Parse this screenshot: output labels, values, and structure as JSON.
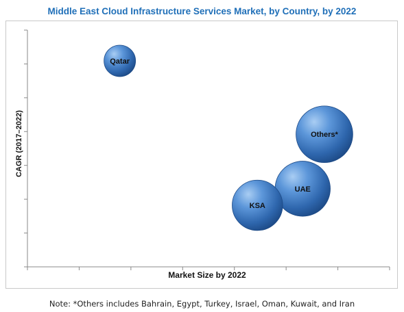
{
  "chart_data": {
    "type": "bubble",
    "title": "Middle East Cloud Infrastructure Services Market, by Country, by 2022",
    "xlabel": "Market Size by 2022",
    "ylabel": "CAGR (2017–2022)",
    "x_ticks_labeled": false,
    "y_ticks_labeled": false,
    "grid": false,
    "legend": "none",
    "xlim": [
      0,
      10
    ],
    "ylim": [
      0,
      10
    ],
    "points": [
      {
        "label": "Qatar",
        "x": 2.55,
        "y": 8.7,
        "size": 1.0
      },
      {
        "label": "KSA",
        "x": 6.35,
        "y": 2.6,
        "size": 1.6
      },
      {
        "label": "UAE",
        "x": 7.6,
        "y": 3.3,
        "size": 1.75
      },
      {
        "label": "Others*",
        "x": 8.2,
        "y": 5.6,
        "size": 1.8
      }
    ],
    "bubble_color": "#3a78c4"
  },
  "note": "Note: *Others includes Bahrain, Egypt, Turkey, Israel, Oman, Kuwait, and Iran"
}
